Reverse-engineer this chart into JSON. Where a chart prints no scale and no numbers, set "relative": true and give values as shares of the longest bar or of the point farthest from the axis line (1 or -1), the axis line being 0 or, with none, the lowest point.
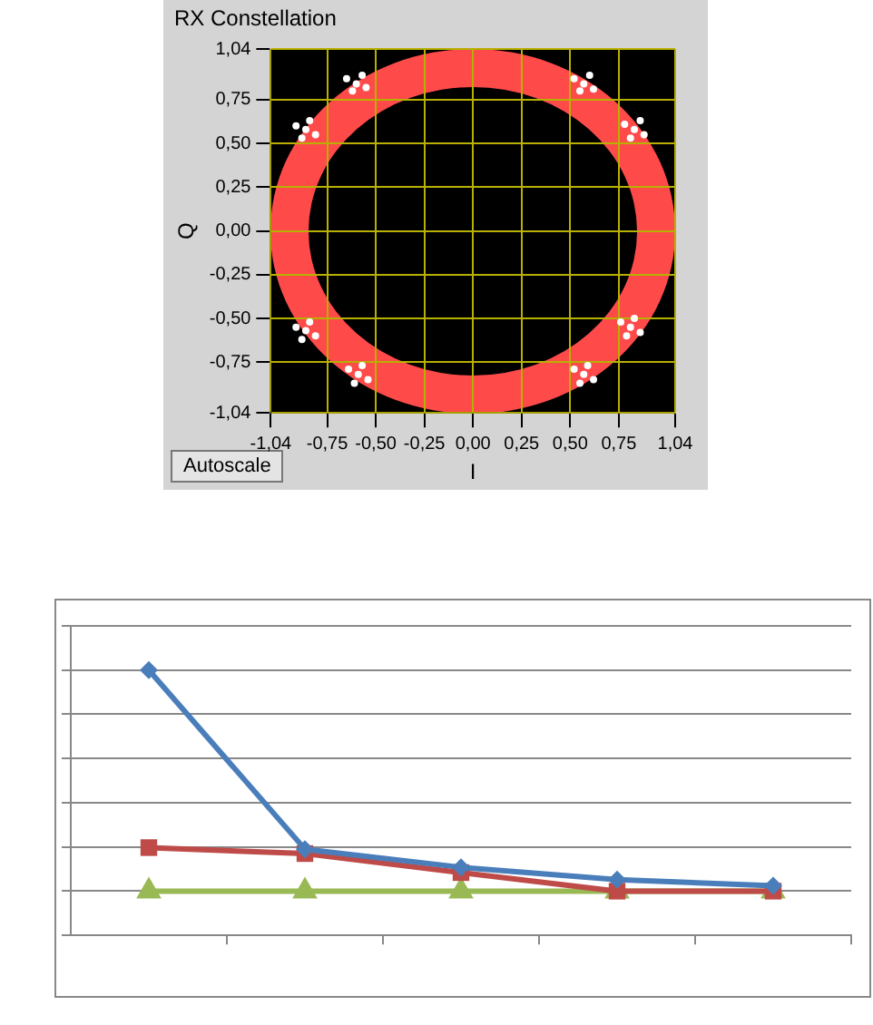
{
  "chart_data": [
    {
      "type": "scatter",
      "title": "RX Constellation",
      "xlabel": "I",
      "ylabel": "Q",
      "annotations": [
        "Autoscale"
      ],
      "xlim": [
        -1.04,
        1.04
      ],
      "ylim": [
        -1.04,
        1.04
      ],
      "grid": true,
      "xticks": [
        {
          "value": -1.04,
          "label": "-1,04"
        },
        {
          "value": -0.75,
          "label": "-0,75"
        },
        {
          "value": -0.5,
          "label": "-0,50"
        },
        {
          "value": -0.25,
          "label": "-0,25"
        },
        {
          "value": 0,
          "label": "0,00"
        },
        {
          "value": 0.25,
          "label": "0,25"
        },
        {
          "value": 0.5,
          "label": "0,50"
        },
        {
          "value": 0.75,
          "label": "0,75"
        },
        {
          "value": 1.04,
          "label": "1,04"
        }
      ],
      "yticks": [
        {
          "value": -1.04,
          "label": "-1,04"
        },
        {
          "value": -0.75,
          "label": "-0,75"
        },
        {
          "value": -0.5,
          "label": "-0,50"
        },
        {
          "value": -0.25,
          "label": "-0,25"
        },
        {
          "value": 0,
          "label": "0,00"
        },
        {
          "value": 0.25,
          "label": "0,25"
        },
        {
          "value": 0.5,
          "label": "0,50"
        },
        {
          "value": 0.75,
          "label": "0,75"
        },
        {
          "value": 1.04,
          "label": "1,04"
        }
      ],
      "series": [
        {
          "color": "#ffffff",
          "marker": "circle",
          "x": [
            -0.6,
            -0.65,
            -0.55,
            -0.62,
            -0.57,
            0.57,
            0.52,
            0.62,
            0.55,
            0.6,
            -0.86,
            -0.91,
            -0.81,
            -0.88,
            -0.84,
            0.83,
            0.78,
            0.88,
            0.81,
            0.86,
            -0.86,
            -0.91,
            -0.81,
            -0.84,
            -0.88,
            0.81,
            0.76,
            0.86,
            0.83,
            0.79,
            -0.59,
            -0.64,
            -0.54,
            -0.57,
            -0.61,
            0.57,
            0.52,
            0.62,
            0.59,
            0.55
          ],
          "values": [
            0.84,
            0.87,
            0.82,
            0.8,
            0.89,
            0.84,
            0.87,
            0.81,
            0.8,
            0.89,
            0.58,
            0.6,
            0.55,
            0.53,
            0.63,
            0.58,
            0.61,
            0.55,
            0.53,
            0.63,
            -0.57,
            -0.55,
            -0.6,
            -0.52,
            -0.62,
            -0.55,
            -0.52,
            -0.58,
            -0.5,
            -0.6,
            -0.82,
            -0.79,
            -0.85,
            -0.77,
            -0.87,
            -0.82,
            -0.79,
            -0.85,
            -0.77,
            -0.87
          ]
        }
      ]
    },
    {
      "type": "line",
      "relative": true,
      "grid": "y",
      "categories": [
        null,
        null,
        null,
        null,
        null
      ],
      "series": [
        {
          "color": "#4a7ebb",
          "marker": "diamond",
          "values": [
            1,
            0.19,
            0.108,
            0.052,
            0.024
          ]
        },
        {
          "color": "#be4b48",
          "marker": "square",
          "values": [
            0.197,
            0.17,
            0.084,
            0,
            0
          ]
        },
        {
          "color": "#98b954",
          "marker": "triangle",
          "values": [
            0,
            0,
            0,
            0,
            0
          ]
        }
      ]
    }
  ]
}
